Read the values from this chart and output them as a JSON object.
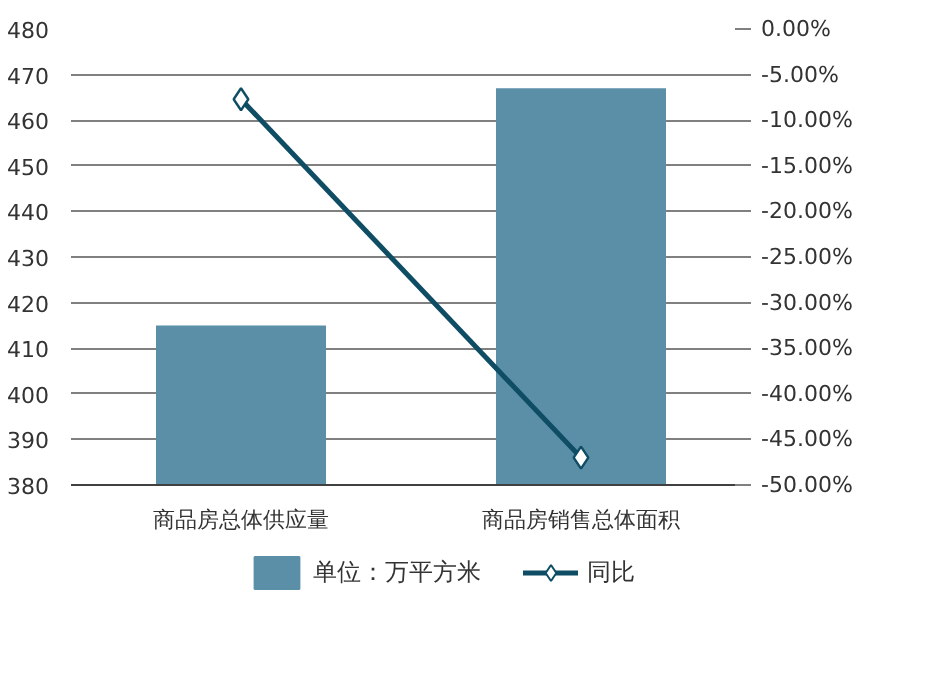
{
  "chart_data": {
    "type": "bar",
    "categories": [
      "商品房总体供应量",
      "商品房销售总体面积"
    ],
    "series": [
      {
        "name": "单位：万平方米",
        "color": "#5b8fa8",
        "values": [
          415,
          467
        ]
      },
      {
        "name": "同比",
        "type": "line",
        "axis": "y2",
        "color": "#0e4d64",
        "marker": "diamond",
        "values": [
          -7.7,
          -47.0
        ]
      }
    ],
    "ylim": [
      380,
      480
    ],
    "yticks": [
      380,
      390,
      400,
      410,
      420,
      430,
      440,
      450,
      460,
      470,
      480
    ],
    "y2lim": [
      -50,
      0
    ],
    "y2ticks": [
      {
        "value": -50,
        "label": "-50.00%"
      },
      {
        "value": -45,
        "label": "-45.00%"
      },
      {
        "value": -40,
        "label": "-40.00%"
      },
      {
        "value": -35,
        "label": "-35.00%"
      },
      {
        "value": -30,
        "label": "-30.00%"
      },
      {
        "value": -25,
        "label": "-25.00%"
      },
      {
        "value": -20,
        "label": "-20.00%"
      },
      {
        "value": -15,
        "label": "-15.00%"
      },
      {
        "value": -10,
        "label": "-10.00%"
      },
      {
        "value": -5,
        "label": "-5.00%"
      },
      {
        "value": 0,
        "label": "0.00%"
      }
    ],
    "grid": "y",
    "legend": "bottom"
  }
}
